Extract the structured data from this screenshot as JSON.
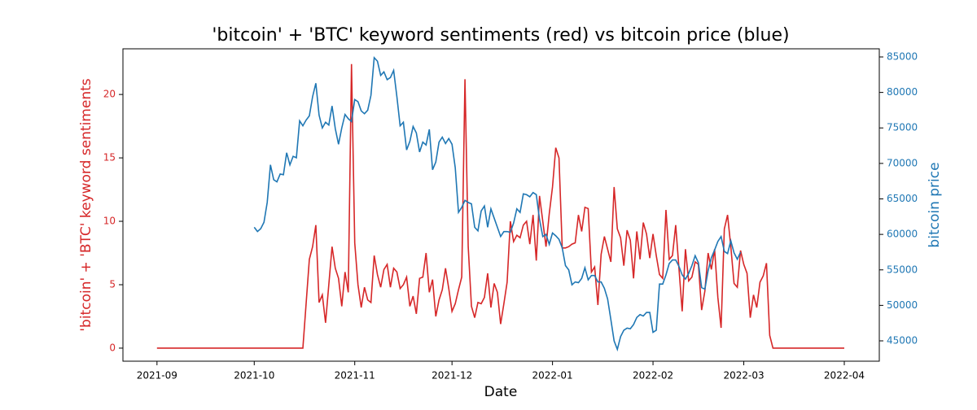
{
  "chart_data": {
    "type": "line",
    "title": "'bitcoin' + 'BTC' keyword sentiments (red) vs bitcoin price (blue)",
    "xlabel": "Date",
    "ylabel": "'bitcoin' + 'BTC' keyword sentiments",
    "y2label": "bitcoin price",
    "x": [
      0,
      1,
      2,
      3,
      4,
      5,
      6,
      7,
      8,
      9,
      10,
      11,
      12,
      13,
      14,
      15,
      16,
      17,
      18,
      19,
      20,
      21,
      22,
      23,
      24,
      25,
      26,
      27,
      28,
      29,
      30,
      31,
      32,
      33,
      34,
      35,
      36,
      37,
      38,
      39,
      40,
      41,
      42,
      43,
      44,
      45,
      46,
      47,
      48,
      49,
      50,
      51,
      52,
      53,
      54,
      55,
      56,
      57,
      58,
      59,
      60,
      61,
      62,
      63,
      64,
      65,
      66,
      67,
      68,
      69,
      70,
      71,
      72,
      73,
      74,
      75,
      76,
      77,
      78,
      79,
      80,
      81,
      82,
      83,
      84,
      85,
      86,
      87,
      88,
      89,
      90,
      91,
      92,
      93,
      94,
      95,
      96,
      97,
      98,
      99,
      100,
      101,
      102,
      103,
      104,
      105,
      106,
      107,
      108,
      109,
      110,
      111,
      112,
      113,
      114,
      115,
      116,
      117,
      118,
      119,
      120,
      121,
      122,
      123,
      124,
      125,
      126,
      127,
      128,
      129,
      130,
      131,
      132,
      133,
      134,
      135,
      136,
      137,
      138,
      139,
      140,
      141,
      142,
      143,
      144,
      145,
      146,
      147,
      148,
      149,
      150,
      151,
      152,
      153,
      154,
      155,
      156,
      157,
      158,
      159,
      160,
      161,
      162,
      163,
      164,
      165,
      166,
      167,
      168,
      169,
      170,
      171,
      172,
      173,
      174,
      175,
      176,
      177,
      178,
      179,
      180,
      181,
      182,
      183,
      184,
      185,
      186,
      187,
      188,
      189,
      190,
      191,
      192,
      193,
      194,
      195,
      196,
      197,
      198,
      199,
      200,
      201,
      202,
      203,
      204,
      205,
      206,
      207,
      208,
      209,
      210,
      211,
      212
    ],
    "series": [
      {
        "name": "'bitcoin' + 'BTC' keyword sentiments",
        "color": "#d62728",
        "axis": "y",
        "values": [
          0,
          0,
          0,
          0,
          0,
          0,
          0,
          0,
          0,
          0,
          0,
          0,
          0,
          0,
          0,
          0,
          0,
          0,
          0,
          0,
          0,
          0,
          0,
          0,
          0,
          0,
          0,
          0,
          0,
          0,
          0,
          0,
          0,
          0,
          0,
          0,
          0,
          0,
          0,
          0,
          0,
          0,
          0,
          0,
          0,
          0,
          3.5,
          7,
          8,
          9.7,
          3.6,
          4.2,
          2,
          5,
          8,
          6.3,
          5.5,
          3.3,
          6,
          4.4,
          22.4,
          8.3,
          5,
          3.2,
          4.8,
          3.8,
          3.6,
          7.3,
          5.8,
          4.8,
          6.2,
          6.6,
          4.8,
          6.3,
          6,
          4.7,
          5,
          5.6,
          3.3,
          4.1,
          2.7,
          5.5,
          5.6,
          7.5,
          4.4,
          5.4,
          2.5,
          3.8,
          4.6,
          6.3,
          4.7,
          2.9,
          3.5,
          4.6,
          5.6,
          21.2,
          8,
          3.3,
          2.4,
          3.6,
          3.5,
          4,
          5.9,
          3.2,
          5.1,
          4.4,
          1.9,
          3.5,
          5.2,
          10,
          8.4,
          8.9,
          8.7,
          9.7,
          10,
          8.2,
          10.5,
          6.9,
          12,
          10,
          8,
          10.6,
          12.7,
          15.8,
          15,
          7.9,
          7.9,
          8,
          8.2,
          8.3,
          10.5,
          9.2,
          11.1,
          11,
          6,
          6.4,
          3.4,
          7.4,
          8.8,
          7.8,
          6.8,
          12.7,
          9.4,
          8.7,
          6.5,
          9.3,
          8.5,
          5.5,
          9.2,
          7,
          9.9,
          9,
          7.1,
          9,
          7.3,
          5.8,
          5.5,
          10.9,
          7,
          7.3,
          9.7,
          6.3,
          2.9,
          7.8,
          5.3,
          5.6,
          6.8,
          6.6,
          3,
          4.5,
          7.5,
          6.2,
          7.8,
          4,
          1.6,
          9.4,
          10.5,
          8,
          5.1,
          4.8,
          7.7,
          6.6,
          5.9,
          2.4,
          4.2,
          3.2,
          5.2,
          5.7,
          6.7,
          1,
          0,
          0,
          0,
          0,
          0,
          0,
          0,
          0,
          0,
          0,
          0,
          0,
          0,
          0,
          0,
          0,
          0,
          0,
          0,
          0,
          0,
          0,
          0
        ]
      },
      {
        "name": "bitcoin price",
        "color": "#1f77b4",
        "axis": "y2",
        "values": [
          null,
          null,
          null,
          null,
          null,
          null,
          null,
          null,
          null,
          null,
          null,
          null,
          null,
          null,
          null,
          null,
          null,
          null,
          null,
          null,
          null,
          null,
          null,
          null,
          null,
          null,
          null,
          null,
          null,
          null,
          61000,
          60400,
          60800,
          61700,
          64500,
          69800,
          67700,
          67400,
          68500,
          68400,
          71500,
          69800,
          71000,
          70800,
          76000,
          75300,
          76100,
          76700,
          79400,
          81300,
          76800,
          75000,
          75800,
          75400,
          78100,
          74900,
          72700,
          75000,
          76900,
          76300,
          75900,
          79000,
          78700,
          77400,
          77000,
          77500,
          79600,
          84900,
          84400,
          82400,
          82900,
          81800,
          82100,
          83100,
          79400,
          75300,
          75800,
          71900,
          73100,
          75200,
          74300,
          71600,
          73000,
          72600,
          74800,
          69100,
          70200,
          73000,
          73700,
          72800,
          73500,
          72700,
          69400,
          63100,
          63800,
          64800,
          64500,
          64300,
          61000,
          60500,
          63300,
          64000,
          61000,
          63600,
          62300,
          61000,
          59700,
          60400,
          60400,
          60300,
          61600,
          63600,
          63100,
          65700,
          65600,
          65300,
          65900,
          65600,
          62100,
          59700,
          60000,
          58600,
          60200,
          59800,
          59300,
          58100,
          55600,
          55000,
          52900,
          53300,
          53200,
          53800,
          55300,
          53600,
          54200,
          54200,
          53300,
          53300,
          52400,
          50900,
          48000,
          45000,
          43800,
          45600,
          46500,
          46800,
          46700,
          47300,
          48300,
          48700,
          48500,
          49000,
          49000,
          46200,
          46500,
          53000,
          53000,
          54300,
          55900,
          56400,
          56400,
          55500,
          54300,
          53700,
          54500,
          55600,
          57000,
          56000,
          52500,
          52300,
          54900,
          56700,
          57800,
          59000,
          59700,
          57600,
          57300,
          59100,
          57400,
          56500,
          57500,
          null,
          null,
          null,
          null,
          null,
          null,
          null,
          null,
          null,
          null,
          null,
          null,
          null,
          null,
          null,
          null,
          null,
          null,
          null,
          null,
          null,
          null,
          null,
          null,
          null,
          null,
          null,
          null,
          null,
          null,
          null,
          null
        ]
      }
    ],
    "xlim": [
      -10.5,
      222.8
    ],
    "xticks": [
      {
        "value": 0,
        "label": "2021-09"
      },
      {
        "value": 30,
        "label": "2021-10"
      },
      {
        "value": 61,
        "label": "2021-11"
      },
      {
        "value": 91,
        "label": "2021-12"
      },
      {
        "value": 122,
        "label": "2022-01"
      },
      {
        "value": 153,
        "label": "2022-02"
      },
      {
        "value": 181,
        "label": "2022-03"
      },
      {
        "value": 212,
        "label": "2022-04"
      }
    ],
    "ylim": [
      -1.03,
      23.6
    ],
    "yticks": [
      0,
      5,
      10,
      15,
      20
    ],
    "y2lim": [
      42135,
      86146
    ],
    "y2ticks": [
      45000,
      50000,
      55000,
      60000,
      65000,
      70000,
      75000,
      80000,
      85000
    ]
  }
}
